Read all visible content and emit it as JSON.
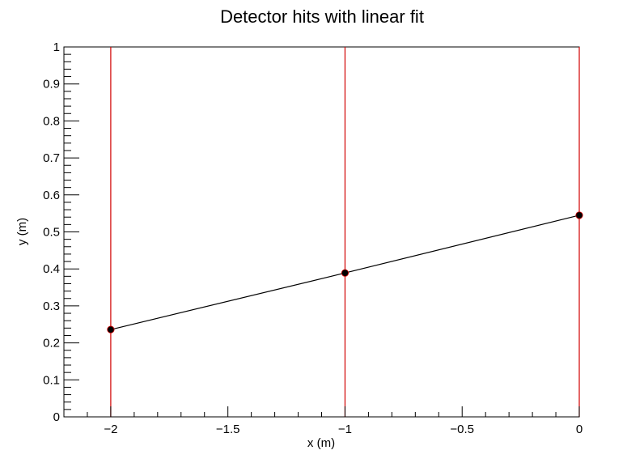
{
  "chart_data": {
    "type": "scatter",
    "title": "Detector hits with linear fit",
    "xlabel": "x (m)",
    "ylabel": "y (m)",
    "xlim": [
      -2.2,
      0.0
    ],
    "ylim": [
      0,
      1
    ],
    "xticks": [
      {
        "value": -2,
        "label": "−2"
      },
      {
        "value": -1.5,
        "label": "−1.5"
      },
      {
        "value": -1,
        "label": "−1"
      },
      {
        "value": -0.5,
        "label": "−0.5"
      },
      {
        "value": 0,
        "label": "0"
      }
    ],
    "yticks": [
      {
        "value": 0,
        "label": "0"
      },
      {
        "value": 0.1,
        "label": "0.1"
      },
      {
        "value": 0.2,
        "label": "0.2"
      },
      {
        "value": 0.3,
        "label": "0.3"
      },
      {
        "value": 0.4,
        "label": "0.4"
      },
      {
        "value": 0.5,
        "label": "0.5"
      },
      {
        "value": 0.6,
        "label": "0.6"
      },
      {
        "value": 0.7,
        "label": "0.7"
      },
      {
        "value": 0.8,
        "label": "0.8"
      },
      {
        "value": 0.9,
        "label": "0.9"
      },
      {
        "value": 1,
        "label": "1"
      }
    ],
    "grid": false,
    "detector_planes": {
      "x": [
        -2,
        -1,
        0
      ],
      "color": "#d10000"
    },
    "hits": {
      "x": [
        -2,
        -1,
        0
      ],
      "y": [
        0.236,
        0.389,
        0.545
      ],
      "marker_color": "#000000",
      "marker_edge_color": "#d10000"
    },
    "fit_line": {
      "x": [
        -2,
        -1,
        0
      ],
      "y": [
        0.236,
        0.389,
        0.545
      ],
      "color": "#000000"
    }
  }
}
